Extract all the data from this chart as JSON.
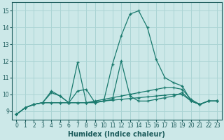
{
  "xlabel": "Humidex (Indice chaleur)",
  "xlim": [
    -0.5,
    23.5
  ],
  "ylim": [
    8.5,
    15.5
  ],
  "xticks": [
    0,
    1,
    2,
    3,
    4,
    5,
    6,
    7,
    8,
    9,
    10,
    11,
    12,
    13,
    14,
    15,
    16,
    17,
    18,
    19,
    20,
    21,
    22,
    23
  ],
  "yticks": [
    9,
    10,
    11,
    12,
    13,
    14,
    15
  ],
  "background_color": "#cce8e8",
  "grid_color": "#aad4d4",
  "line_color": "#1a7a6e",
  "line1": [
    8.8,
    9.2,
    9.4,
    9.5,
    10.1,
    9.9,
    9.5,
    11.9,
    9.5,
    9.5,
    9.6,
    11.8,
    13.5,
    14.8,
    15.0,
    14.0,
    12.1,
    11.0,
    10.7,
    10.5,
    9.6,
    9.4,
    9.6,
    9.6
  ],
  "line2": [
    8.8,
    9.2,
    9.4,
    9.5,
    10.2,
    9.9,
    9.5,
    10.2,
    10.3,
    9.5,
    9.6,
    9.7,
    12.0,
    9.9,
    9.6,
    9.6,
    9.7,
    9.8,
    9.9,
    10.1,
    9.6,
    9.4,
    9.6,
    9.6
  ],
  "line3": [
    8.8,
    9.2,
    9.4,
    9.5,
    9.5,
    9.5,
    9.5,
    9.5,
    9.5,
    9.6,
    9.7,
    9.8,
    9.9,
    10.0,
    10.1,
    10.2,
    10.3,
    10.4,
    10.4,
    10.3,
    9.7,
    9.4,
    9.6,
    9.6
  ],
  "line4": [
    8.8,
    9.2,
    9.4,
    9.5,
    9.5,
    9.5,
    9.5,
    9.5,
    9.5,
    9.55,
    9.6,
    9.65,
    9.7,
    9.75,
    9.8,
    9.85,
    9.9,
    9.95,
    10.0,
    10.0,
    9.6,
    9.4,
    9.6,
    9.6
  ],
  "xlabel_fontsize": 7,
  "tick_labelsize": 5.5,
  "title_fontsize": 7
}
